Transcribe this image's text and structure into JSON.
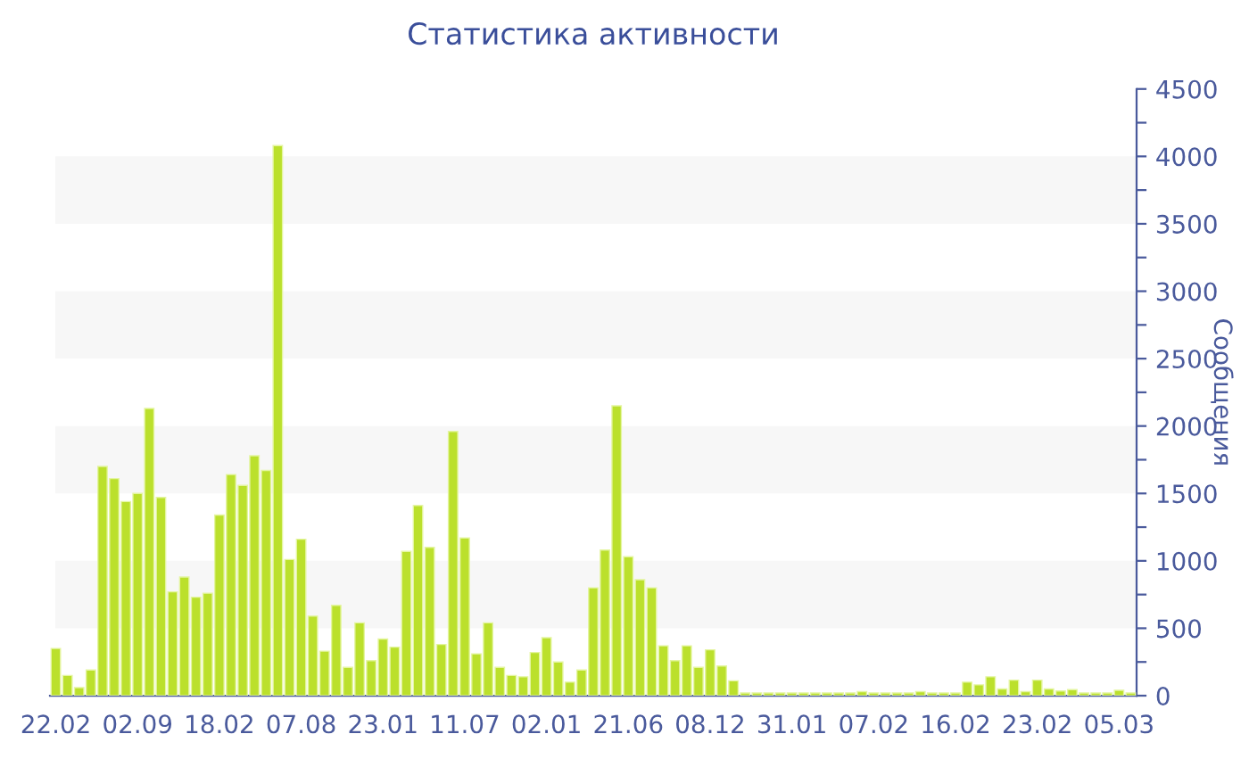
{
  "chart_data": {
    "type": "bar",
    "title": "Статистика активности",
    "ylabel": "Сообщения",
    "categories": [
      "22.02",
      null,
      null,
      null,
      null,
      null,
      null,
      "02.09",
      null,
      null,
      null,
      null,
      null,
      null,
      "18.02",
      null,
      null,
      null,
      null,
      null,
      null,
      "07.08",
      null,
      null,
      null,
      null,
      null,
      null,
      "23.01",
      null,
      null,
      null,
      null,
      null,
      null,
      "11.07",
      null,
      null,
      null,
      null,
      null,
      null,
      "02.01",
      null,
      null,
      null,
      null,
      null,
      null,
      "21.06",
      null,
      null,
      null,
      null,
      null,
      null,
      "08.12",
      null,
      null,
      null,
      null,
      null,
      null,
      "31.01",
      null,
      null,
      null,
      null,
      null,
      null,
      "07.02",
      null,
      null,
      null,
      null,
      null,
      null,
      "16.02",
      null,
      null,
      null,
      null,
      null,
      null,
      "23.02",
      null,
      null,
      null,
      null,
      null,
      null,
      "05.03",
      null
    ],
    "values": [
      350,
      150,
      60,
      190,
      1700,
      1610,
      1440,
      1500,
      2130,
      1470,
      770,
      880,
      730,
      760,
      1340,
      1640,
      1560,
      1780,
      1670,
      4080,
      1010,
      1160,
      590,
      330,
      670,
      210,
      540,
      260,
      420,
      360,
      1070,
      1410,
      1100,
      380,
      1960,
      1170,
      310,
      540,
      210,
      150,
      140,
      320,
      430,
      250,
      100,
      190,
      800,
      1080,
      2150,
      1030,
      860,
      800,
      370,
      260,
      370,
      210,
      340,
      220,
      110,
      20,
      20,
      20,
      20,
      20,
      20,
      20,
      20,
      20,
      20,
      30,
      20,
      20,
      20,
      20,
      30,
      20,
      20,
      20,
      100,
      80,
      140,
      50,
      115,
      30,
      115,
      50,
      35,
      45,
      20,
      20,
      20,
      40,
      20
    ],
    "color": "#bbe02c",
    "ylim": [
      0,
      4500
    ],
    "yticks": [
      0,
      {
        "value": 250,
        "label": null
      },
      500,
      {
        "value": 750,
        "label": null
      },
      1000,
      {
        "value": 1250,
        "label": null
      },
      1500,
      {
        "value": 1750,
        "label": null
      },
      2000,
      {
        "value": 2250,
        "label": null
      },
      2500,
      {
        "value": 2750,
        "label": null
      },
      3000,
      {
        "value": 3250,
        "label": null
      },
      3500,
      {
        "value": 3750,
        "label": null
      },
      4000,
      {
        "value": 4250,
        "label": null
      },
      4500
    ],
    "bands": [
      {
        "axis": "y",
        "from": 500,
        "to": 1000,
        "color": "#f7f7f7"
      },
      {
        "axis": "y",
        "from": 1500,
        "to": 2000,
        "color": "#f7f7f7"
      },
      {
        "axis": "y",
        "from": 2500,
        "to": 3000,
        "color": "#f7f7f7"
      },
      {
        "axis": "y",
        "from": 3500,
        "to": 4000,
        "color": "#f7f7f7"
      }
    ],
    "grid": false,
    "legend": false
  }
}
